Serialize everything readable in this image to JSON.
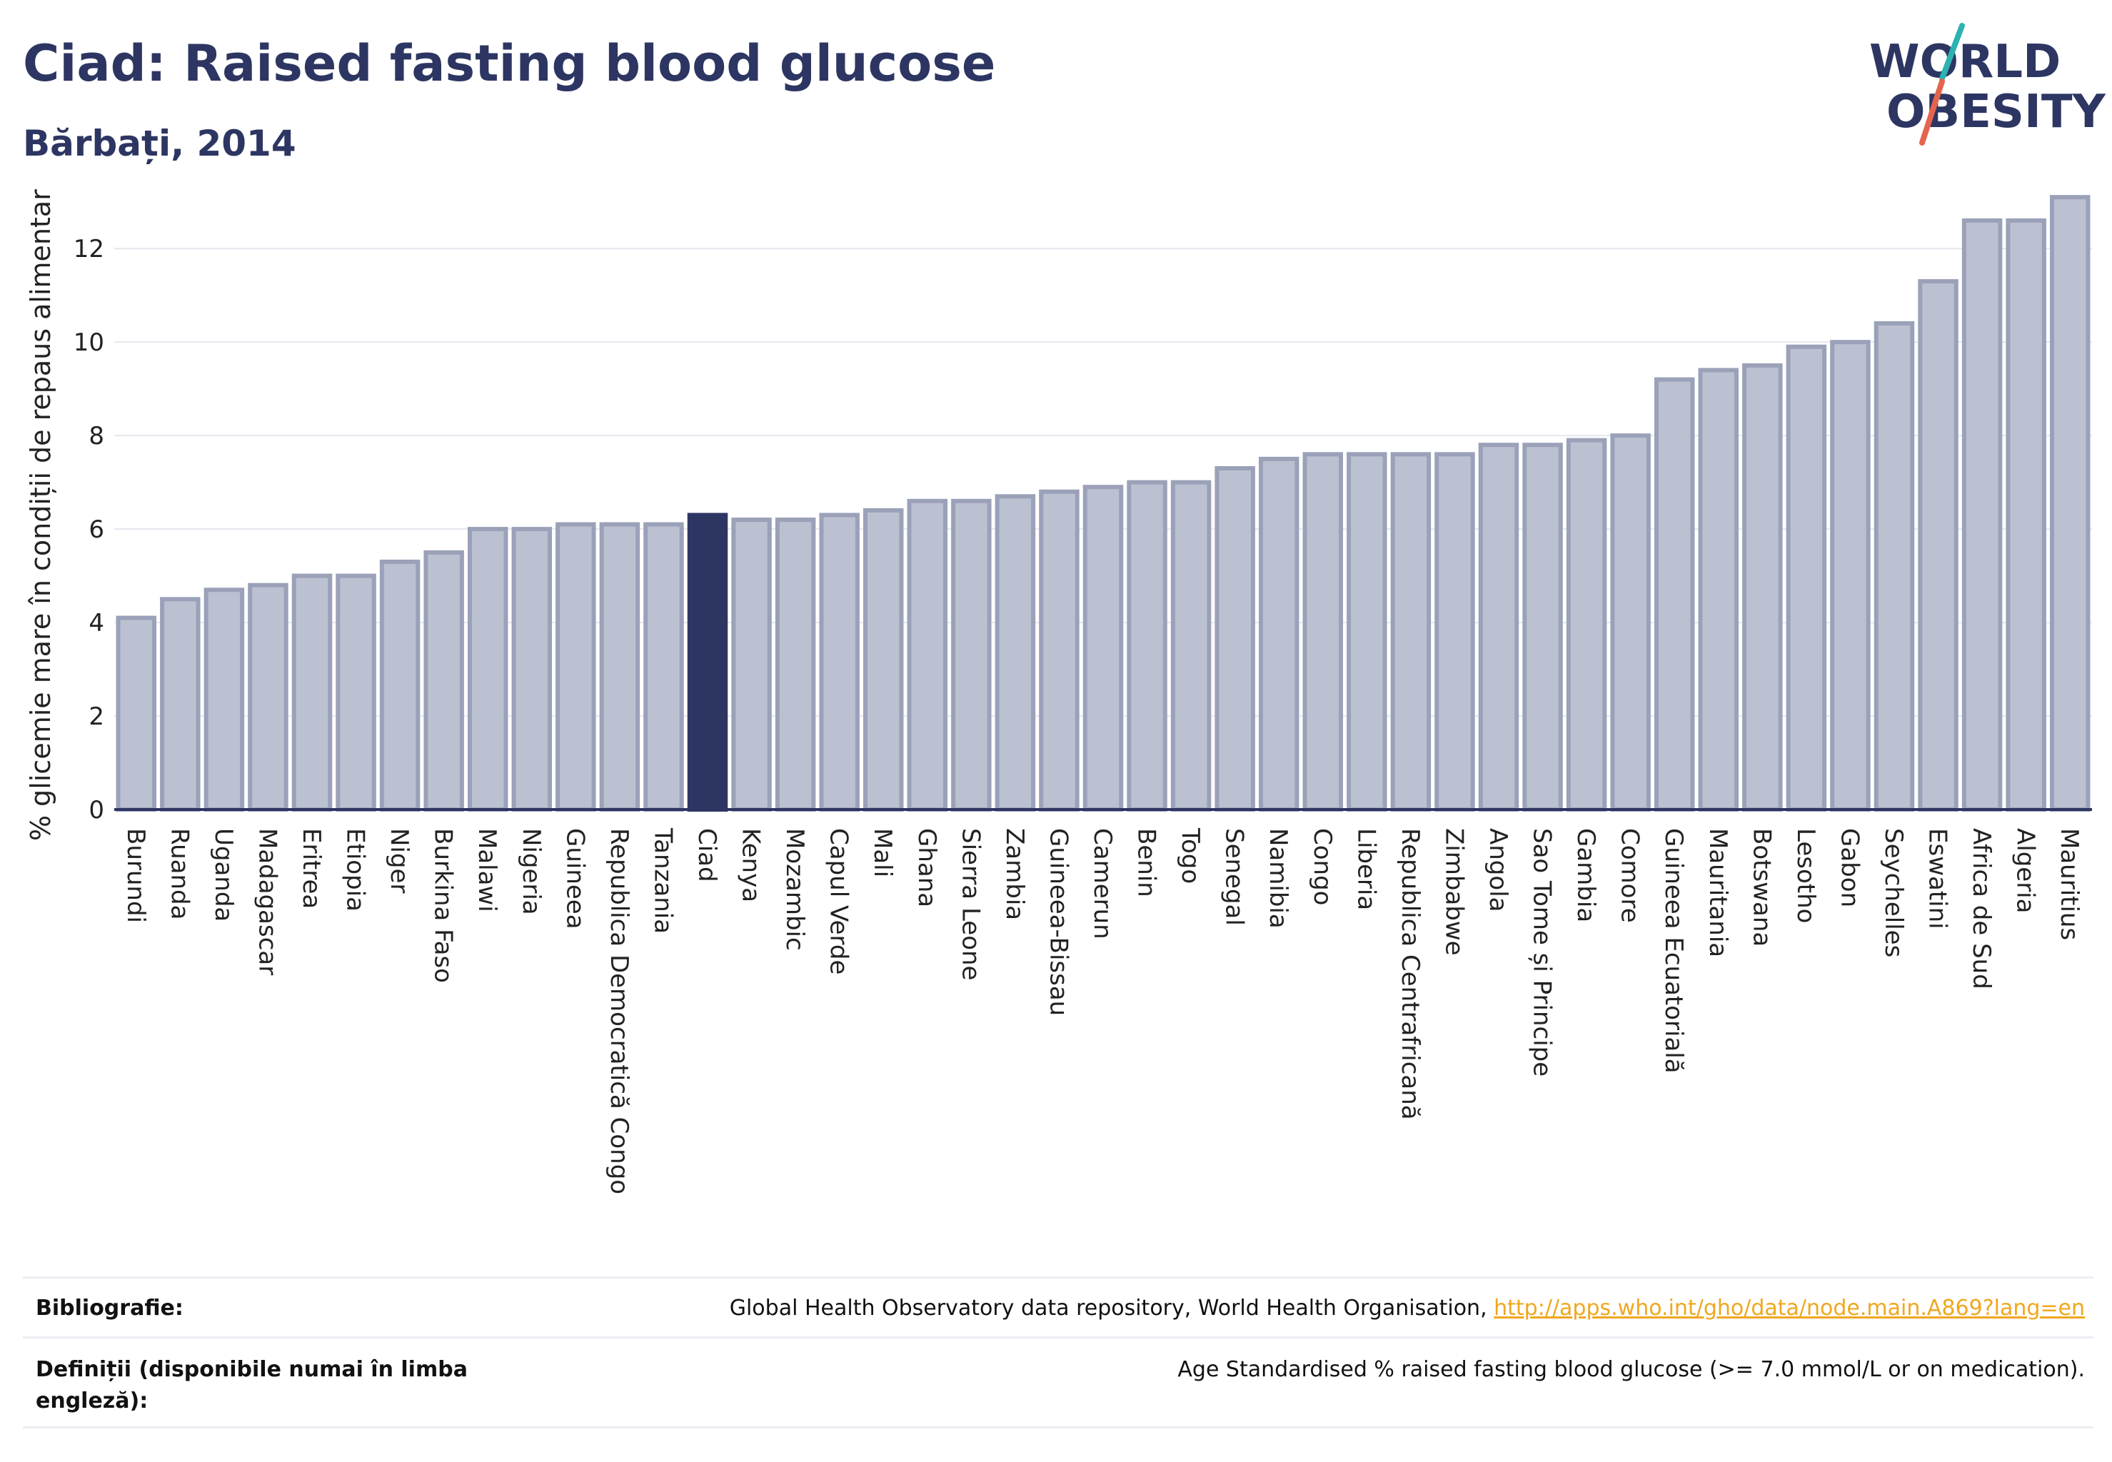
{
  "header": {
    "title": "Ciad: Raised fasting blood glucose",
    "subtitle": "Bărbați, 2014"
  },
  "logo": {
    "line1": "WORLD",
    "line2": "OBESITY",
    "colors": {
      "text": "#2d3662",
      "teal": "#2bb3b1",
      "coral": "#e5644e"
    }
  },
  "colors": {
    "bar_fill": "#bcc1d1",
    "bar_stroke": "#9aa1b8",
    "highlight": "#2d3662",
    "grid": "#e5e7ee",
    "axis": "#2d3662"
  },
  "chart_data": {
    "type": "bar",
    "title": "Ciad: Raised fasting blood glucose",
    "subtitle": "Bărbați, 2014",
    "xlabel": "",
    "ylabel": "% glicemie mare în condiții de repaus alimentar",
    "ylim": [
      0,
      13.5
    ],
    "yticks": [
      0,
      2,
      4,
      6,
      8,
      10,
      12
    ],
    "grid": true,
    "highlight": "Ciad",
    "categories": [
      "Burundi",
      "Ruanda",
      "Uganda",
      "Madagascar",
      "Eritrea",
      "Etiopia",
      "Niger",
      "Burkina Faso",
      "Malawi",
      "Nigeria",
      "Guineea",
      "Republica Democratică Congo",
      "Tanzania",
      "Ciad",
      "Kenya",
      "Mozambic",
      "Capul Verde",
      "Mali",
      "Ghana",
      "Sierra Leone",
      "Zambia",
      "Guineea-Bissau",
      "Camerun",
      "Benin",
      "Togo",
      "Senegal",
      "Namibia",
      "Congo",
      "Liberia",
      "Republica Centrafricană",
      "Zimbabwe",
      "Angola",
      "Sao Tome și Principe",
      "Gambia",
      "Comore",
      "Guineea Ecuatorială",
      "Mauritania",
      "Botswana",
      "Lesotho",
      "Gabon",
      "Seychelles",
      "Eswatini",
      "Africa de Sud",
      "Algeria",
      "Mauritius"
    ],
    "values": [
      4.1,
      4.5,
      4.7,
      4.8,
      5.0,
      5.0,
      5.3,
      5.5,
      6.0,
      6.0,
      6.1,
      6.1,
      6.1,
      6.3,
      6.2,
      6.2,
      6.3,
      6.4,
      6.6,
      6.6,
      6.7,
      6.8,
      6.9,
      7.0,
      7.0,
      7.3,
      7.5,
      7.6,
      7.6,
      7.6,
      7.6,
      7.8,
      7.8,
      7.9,
      8.0,
      9.2,
      9.4,
      9.5,
      9.9,
      10.0,
      10.4,
      11.3,
      12.6,
      12.6,
      13.1
    ]
  },
  "footer": {
    "bibliography_label": "Bibliografie:",
    "bibliography_text": "Global Health Observatory data repository, World Health Organisation, ",
    "bibliography_link": "http://apps.who.int/gho/data/node.main.A869?lang=en",
    "definitions_label": "Definiții (disponibile numai în limba engleză):",
    "definitions_text": "Age Standardised % raised fasting blood glucose (>= 7.0 mmol/L or on medication)."
  }
}
